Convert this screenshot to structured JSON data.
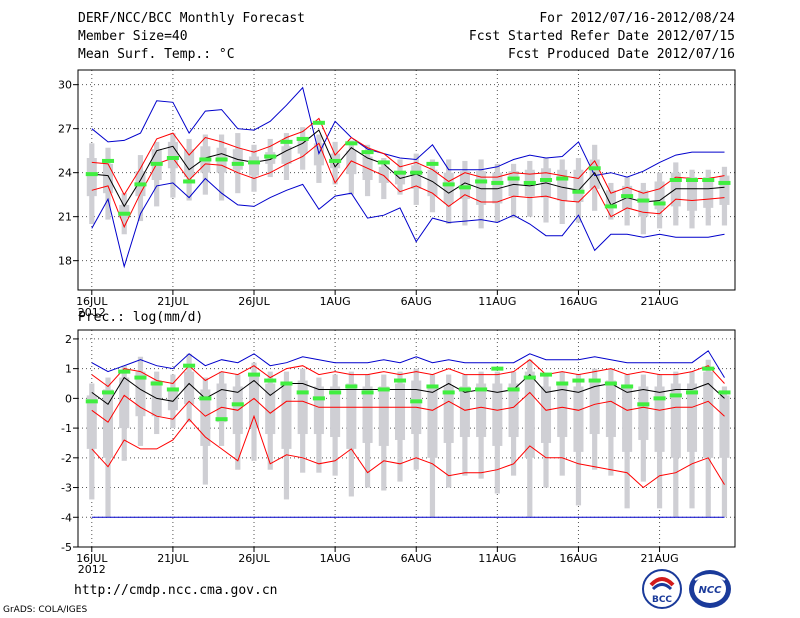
{
  "header": {
    "title": "DERF/NCC/BCC Monthly Forecast",
    "member_size": "Member Size=40",
    "variable": "Mean Surf. Temp.: °C",
    "period": "For 2012/07/16-2012/08/24",
    "fcst_started": "Fcst Started Refer Date 2012/07/15",
    "fcst_produced": "Fcst Produced Date 2012/07/16"
  },
  "footer": {
    "url": "http://cmdp.ncc.cma.gov.cn",
    "grads": "GrADS: COLA/IGES",
    "logo_left_text": "BCC",
    "logo_right_text": "NCC"
  },
  "colors": {
    "mean": "#000000",
    "spread": "#ff0000",
    "extreme": "#0000cc",
    "observed": "#40ee40",
    "box": "#cfcfd4",
    "grid": "#555555"
  },
  "chart_data": [
    {
      "type": "box-ensemble",
      "title": "Mean Surf. Temp.: °C",
      "ylim": [
        16,
        31
      ],
      "yticks": [
        18,
        21,
        24,
        27,
        30
      ],
      "x_tick_labels": [
        "16JUL",
        "21JUL",
        "26JUL",
        "1AUG",
        "6AUG",
        "11AUG",
        "16AUG",
        "21AUG"
      ],
      "x_tick_index": [
        0,
        5,
        10,
        15,
        20,
        25,
        30,
        35
      ],
      "year_label": "2012",
      "days": 40,
      "mean": [
        23.9,
        23.8,
        21.7,
        23.5,
        25.5,
        25.8,
        24.2,
        25.0,
        25.3,
        24.9,
        24.7,
        24.9,
        25.5,
        26.0,
        26.9,
        24.4,
        25.7,
        25.0,
        24.6,
        23.6,
        23.9,
        23.4,
        22.6,
        23.3,
        22.9,
        22.9,
        23.2,
        23.1,
        23.3,
        23.0,
        22.8,
        24.0,
        21.8,
        22.3,
        22.0,
        22.1,
        22.9,
        22.9,
        22.9,
        23.0
      ],
      "spread_upper": [
        24.7,
        24.6,
        22.5,
        24.3,
        26.3,
        26.7,
        25.2,
        26.4,
        26.1,
        25.7,
        25.4,
        25.8,
        26.4,
        26.8,
        27.7,
        25.2,
        26.4,
        25.7,
        25.3,
        24.4,
        24.7,
        24.2,
        23.4,
        24.0,
        23.7,
        23.7,
        24.0,
        23.9,
        24.0,
        23.8,
        23.6,
        24.8,
        22.6,
        23.0,
        22.6,
        22.9,
        23.7,
        23.6,
        23.6,
        23.8
      ],
      "spread_lower": [
        22.8,
        23.1,
        20.3,
        22.6,
        24.6,
        25.0,
        23.5,
        24.6,
        24.5,
        24.0,
        23.6,
        24.0,
        24.6,
        25.1,
        26.0,
        23.3,
        24.8,
        24.3,
        23.8,
        22.7,
        23.1,
        22.6,
        21.7,
        22.5,
        22.0,
        22.0,
        22.4,
        22.3,
        22.4,
        22.1,
        22.0,
        23.1,
        21.0,
        21.6,
        21.3,
        21.2,
        22.2,
        22.1,
        22.2,
        22.3
      ],
      "max": [
        27.0,
        26.1,
        26.2,
        26.7,
        28.9,
        28.8,
        26.7,
        28.2,
        28.3,
        27.0,
        26.9,
        27.5,
        28.6,
        29.8,
        25.3,
        27.5,
        26.4,
        25.6,
        25.3,
        25.0,
        24.9,
        25.9,
        24.2,
        24.2,
        24.2,
        24.4,
        24.9,
        25.2,
        25.0,
        25.1,
        26.1,
        23.8,
        24.0,
        23.7,
        24.1,
        24.7,
        25.2,
        25.4,
        25.4,
        25.4
      ],
      "min": [
        20.2,
        22.2,
        17.6,
        21.2,
        23.1,
        23.3,
        22.3,
        23.6,
        22.6,
        21.8,
        21.7,
        22.3,
        22.8,
        23.2,
        21.5,
        22.4,
        22.6,
        20.9,
        21.1,
        21.6,
        19.3,
        20.9,
        20.6,
        20.7,
        20.8,
        20.6,
        21.1,
        20.5,
        19.7,
        19.7,
        21.1,
        18.7,
        19.8,
        19.8,
        19.6,
        19.8,
        19.6,
        19.6,
        19.6,
        19.8
      ],
      "box_top": [
        26.0,
        25.7,
        22.6,
        25.2,
        26.1,
        26.7,
        26.3,
        26.6,
        26.6,
        26.7,
        25.9,
        26.3,
        26.7,
        27.1,
        26.6,
        26.1,
        26.2,
        25.9,
        25.0,
        24.9,
        25.3,
        24.9,
        24.9,
        24.8,
        24.9,
        24.6,
        24.6,
        24.8,
        25.0,
        24.9,
        25.0,
        25.9,
        23.3,
        23.7,
        23.3,
        24.0,
        24.7,
        24.2,
        24.2,
        24.4
      ],
      "box_bottom": [
        20.5,
        20.8,
        19.8,
        20.7,
        21.7,
        22.3,
        22.1,
        22.5,
        22.1,
        22.6,
        22.7,
        23.7,
        23.5,
        24.2,
        23.3,
        23.2,
        22.5,
        22.4,
        22.2,
        22.5,
        21.8,
        21.3,
        20.5,
        20.4,
        20.2,
        20.6,
        20.9,
        21.0,
        20.6,
        20.5,
        20.6,
        21.4,
        20.8,
        20.4,
        19.8,
        20.2,
        20.4,
        20.2,
        20.4,
        20.4
      ],
      "inner_top": [
        25.0,
        24.6,
        21.8,
        24.1,
        25.6,
        26.1,
        25.6,
        25.8,
        25.7,
        25.6,
        25.1,
        25.4,
        25.8,
        26.4,
        26.0,
        25.3,
        25.5,
        25.1,
        24.4,
        24.1,
        24.5,
        24.2,
        24.0,
        24.1,
        24.1,
        24.0,
        24.1,
        24.2,
        24.3,
        24.2,
        24.2,
        24.9,
        22.8,
        23.1,
        22.8,
        23.4,
        24.0,
        23.7,
        23.7,
        23.8
      ],
      "inner_bottom": [
        22.4,
        22.6,
        20.9,
        22.4,
        23.5,
        24.3,
        23.7,
        24.0,
        24.0,
        24.2,
        23.8,
        24.6,
        24.6,
        25.3,
        24.5,
        24.3,
        23.9,
        23.5,
        23.3,
        23.2,
        22.9,
        22.4,
        21.9,
        22.2,
        21.8,
        21.9,
        22.4,
        22.4,
        22.3,
        22.1,
        22.0,
        22.9,
        21.8,
        21.5,
        21.0,
        21.5,
        21.7,
        21.4,
        21.6,
        21.8
      ],
      "observed": [
        23.9,
        24.8,
        21.2,
        23.2,
        24.6,
        25.0,
        23.4,
        24.9,
        24.9,
        24.6,
        24.7,
        25.1,
        26.1,
        26.3,
        27.4,
        24.8,
        26.0,
        25.4,
        24.7,
        24.0,
        24.0,
        24.6,
        23.2,
        23.0,
        23.4,
        23.3,
        23.6,
        23.3,
        23.5,
        23.6,
        22.7,
        24.3,
        21.7,
        22.4,
        22.1,
        21.9,
        23.5,
        23.5,
        23.5,
        23.3
      ]
    },
    {
      "type": "box-ensemble",
      "title": "Prec.: log(mm/d)",
      "ylim": [
        -5,
        2.3
      ],
      "yticks": [
        -5,
        -4,
        -3,
        -2,
        -1,
        0,
        1,
        2
      ],
      "x_tick_labels": [
        "16JUL",
        "21JUL",
        "26JUL",
        "1AUG",
        "6AUG",
        "11AUG",
        "16AUG",
        "21AUG"
      ],
      "x_tick_index": [
        0,
        5,
        10,
        15,
        20,
        25,
        30,
        35
      ],
      "year_label": "2012",
      "days": 40,
      "mean": [
        0.2,
        -0.2,
        0.7,
        0.3,
        0.0,
        -0.1,
        0.5,
        0.0,
        0.3,
        0.2,
        0.6,
        0.1,
        0.5,
        0.5,
        0.3,
        0.3,
        0.3,
        0.3,
        0.3,
        0.3,
        0.3,
        0.2,
        0.5,
        0.2,
        0.3,
        0.2,
        0.3,
        0.8,
        0.2,
        0.3,
        0.2,
        0.4,
        0.5,
        0.2,
        0.3,
        0.2,
        0.3,
        0.3,
        0.5,
        0.0
      ],
      "spread_upper": [
        0.8,
        0.4,
        1.0,
        0.9,
        0.6,
        0.5,
        1.1,
        0.6,
        0.9,
        0.8,
        1.1,
        0.7,
        1.0,
        1.1,
        0.8,
        0.9,
        0.8,
        0.8,
        0.9,
        0.8,
        0.9,
        0.8,
        1.0,
        0.8,
        0.8,
        0.8,
        0.9,
        1.3,
        0.8,
        0.9,
        0.8,
        0.9,
        1.0,
        0.8,
        0.9,
        0.8,
        0.8,
        0.9,
        1.1,
        0.5
      ],
      "spread_lower": [
        -0.4,
        -0.8,
        0.1,
        -0.3,
        -0.6,
        -0.7,
        -0.1,
        -0.6,
        -0.3,
        -0.4,
        0.0,
        -0.5,
        -0.1,
        -0.1,
        -0.3,
        -0.3,
        -0.3,
        -0.3,
        -0.3,
        -0.3,
        -0.3,
        -0.4,
        -0.1,
        -0.4,
        -0.3,
        -0.4,
        -0.3,
        0.2,
        -0.4,
        -0.3,
        -0.4,
        -0.2,
        -0.1,
        -0.4,
        -0.3,
        -0.4,
        -0.3,
        -0.3,
        -0.1,
        -0.6
      ],
      "max": [
        1.2,
        0.9,
        1.1,
        1.3,
        1.1,
        1.0,
        1.5,
        1.1,
        1.3,
        1.2,
        1.5,
        1.1,
        1.2,
        1.4,
        1.3,
        1.2,
        1.2,
        1.2,
        1.3,
        1.2,
        1.4,
        1.2,
        1.3,
        1.2,
        1.2,
        1.2,
        1.2,
        1.5,
        1.3,
        1.3,
        1.3,
        1.4,
        1.3,
        1.2,
        1.2,
        1.2,
        1.2,
        1.2,
        1.6,
        0.7
      ],
      "min": [
        -4,
        -4,
        -4,
        -4,
        -4,
        -4,
        -4,
        -4,
        -4,
        -4,
        -4,
        -4,
        -4,
        -4,
        -4,
        -4,
        -4,
        -4,
        -4,
        -4,
        -4,
        -4,
        -4,
        -4,
        -4,
        -4,
        -4,
        -4,
        -4,
        -4,
        -4,
        -4,
        -4,
        -4,
        -4,
        -4,
        -4,
        -4,
        -4,
        -4
      ],
      "box_top": [
        0.5,
        0.7,
        1.1,
        1.4,
        0.9,
        0.8,
        1.5,
        0.7,
        0.9,
        0.8,
        1.2,
        0.9,
        0.9,
        1.0,
        0.7,
        0.8,
        0.9,
        0.8,
        0.8,
        0.9,
        1.0,
        0.8,
        0.8,
        0.8,
        0.9,
        0.9,
        0.9,
        1.3,
        0.8,
        0.9,
        0.8,
        1.0,
        1.0,
        0.8,
        0.8,
        0.8,
        0.9,
        0.9,
        1.3,
        0.4
      ],
      "box_bottom": [
        -3.4,
        -4.0,
        -2.1,
        -1.6,
        -1.2,
        -1.0,
        -0.8,
        -2.9,
        -1.6,
        -2.4,
        -2.1,
        -2.4,
        -3.4,
        -2.5,
        -2.5,
        -2.6,
        -3.3,
        -3.0,
        -3.1,
        -2.8,
        -2.4,
        -4.0,
        -3.0,
        -2.6,
        -2.7,
        -3.2,
        -2.6,
        -4.0,
        -3.0,
        -2.6,
        -3.6,
        -2.4,
        -2.6,
        -3.7,
        -2.8,
        -3.7,
        -4.0,
        -3.7,
        -4.0,
        -4.0
      ],
      "inner_top": [
        0.1,
        0.3,
        0.7,
        0.9,
        0.6,
        0.3,
        0.9,
        0.3,
        0.5,
        0.4,
        0.8,
        0.5,
        0.5,
        0.6,
        0.4,
        0.4,
        0.5,
        0.4,
        0.4,
        0.5,
        0.6,
        0.4,
        0.4,
        0.4,
        0.5,
        0.5,
        0.5,
        0.9,
        0.4,
        0.5,
        0.4,
        0.6,
        0.6,
        0.4,
        0.4,
        0.4,
        0.5,
        0.5,
        0.9,
        0.1
      ],
      "inner_bottom": [
        -1.7,
        -2.0,
        -1.0,
        -0.6,
        -0.6,
        -0.4,
        -0.2,
        -1.6,
        -0.8,
        -1.2,
        -1.0,
        -1.2,
        -1.7,
        -1.2,
        -1.2,
        -1.3,
        -1.7,
        -1.5,
        -1.6,
        -1.4,
        -1.2,
        -2.0,
        -1.5,
        -1.3,
        -1.3,
        -1.6,
        -1.3,
        -2.0,
        -1.5,
        -1.3,
        -1.8,
        -1.2,
        -1.3,
        -1.8,
        -1.4,
        -1.8,
        -2.0,
        -1.8,
        -2.0,
        -2.0
      ],
      "observed": [
        -0.1,
        0.2,
        0.9,
        0.7,
        0.5,
        0.3,
        1.1,
        0.0,
        -0.7,
        -0.2,
        0.8,
        0.6,
        0.5,
        0.2,
        0.0,
        0.2,
        0.4,
        0.2,
        0.3,
        0.6,
        -0.1,
        0.4,
        0.2,
        0.3,
        0.3,
        1.0,
        0.3,
        0.7,
        0.8,
        0.5,
        0.6,
        0.6,
        0.5,
        0.4,
        -0.2,
        0.0,
        0.1,
        0.2,
        1.0,
        0.2
      ],
      "lower_red": [
        -1.7,
        -2.3,
        -1.4,
        -1.7,
        -1.7,
        -1.4,
        -0.7,
        -1.3,
        -1.7,
        -2.1,
        -0.6,
        -2.2,
        -1.9,
        -2.0,
        -2.2,
        -2.1,
        -1.7,
        -2.5,
        -2.1,
        -2.2,
        -2.0,
        -2.2,
        -2.6,
        -2.5,
        -2.5,
        -2.4,
        -2.2,
        -1.6,
        -2.0,
        -2.0,
        -2.2,
        -2.3,
        -2.4,
        -2.5,
        -3.0,
        -2.6,
        -2.5,
        -2.2,
        -2.0,
        -2.9
      ]
    }
  ],
  "precip_label": "Prec.: log(mm/d)"
}
